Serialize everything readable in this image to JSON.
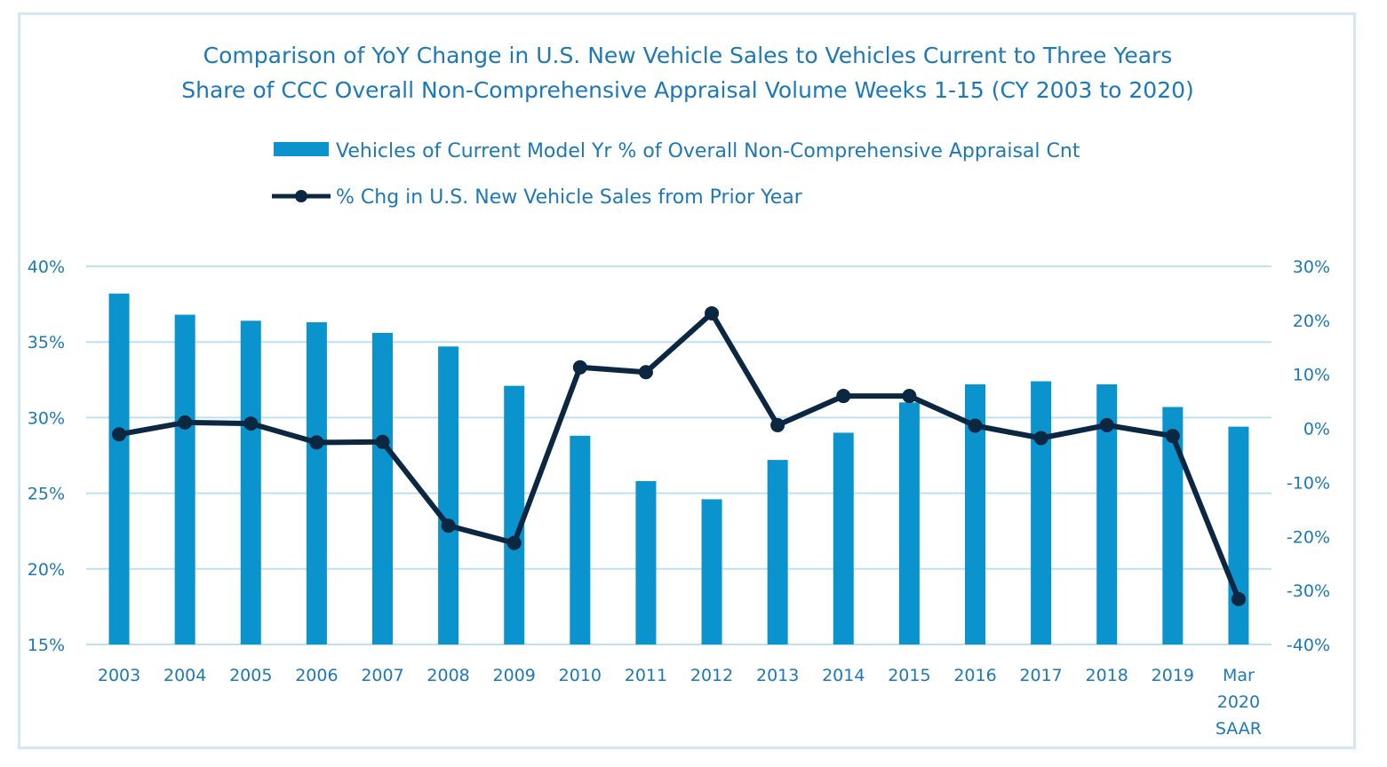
{
  "chart_data": {
    "type": "bar+line",
    "title_lines": [
      "Comparison of YoY Change in U.S. New Vehicle Sales to Vehicles Current to Three Years",
      "Share of CCC Overall Non-Comprehensive Appraisal Volume Weeks 1-15 (CY 2003 to 2020)"
    ],
    "legend_position": "top",
    "grid": true,
    "categories": [
      [
        "2003"
      ],
      [
        "2004"
      ],
      [
        "2005"
      ],
      [
        "2006"
      ],
      [
        "2007"
      ],
      [
        "2008"
      ],
      [
        "2009"
      ],
      [
        "2010"
      ],
      [
        "2011"
      ],
      [
        "2012"
      ],
      [
        "2013"
      ],
      [
        "2014"
      ],
      [
        "2015"
      ],
      [
        "2016"
      ],
      [
        "2017"
      ],
      [
        "2018"
      ],
      [
        "2019"
      ],
      [
        "Mar",
        "2020",
        "SAAR"
      ]
    ],
    "series": [
      {
        "name": "Vehicles of Current Model Yr % of Overall Non-Comprehensive Appraisal Cnt",
        "type": "bar",
        "axis": "left",
        "color": "#0a93cc",
        "values": [
          38.2,
          36.8,
          36.4,
          36.3,
          35.6,
          34.7,
          32.1,
          28.8,
          25.8,
          24.6,
          27.2,
          29.0,
          31.0,
          32.2,
          32.4,
          32.2,
          30.7,
          29.4
        ]
      },
      {
        "name": "% Chg in U.S. New Vehicle Sales from Prior Year",
        "type": "line",
        "axis": "right",
        "color": "#0c2742",
        "values": [
          -1.1,
          1.1,
          0.9,
          -2.6,
          -2.5,
          -18.0,
          -21.2,
          11.3,
          10.4,
          21.3,
          0.6,
          6.0,
          6.0,
          0.5,
          -1.8,
          0.6,
          -1.4,
          -31.6
        ]
      }
    ],
    "y_left": {
      "min": 15,
      "max": 40,
      "ticks": [
        "15%",
        "20%",
        "25%",
        "30%",
        "35%",
        "40%"
      ],
      "tick_values": [
        15,
        20,
        25,
        30,
        35,
        40
      ]
    },
    "y_right": {
      "min": -40,
      "max": 30,
      "ticks": [
        "-40%",
        "-30%",
        "-20%",
        "-10%",
        "0%",
        "10%",
        "20%",
        "30%"
      ],
      "tick_values": [
        -40,
        -30,
        -20,
        -10,
        0,
        10,
        20,
        30
      ]
    }
  }
}
